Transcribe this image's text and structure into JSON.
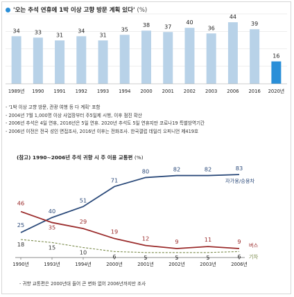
{
  "title": "'오는 추석 연휴에 1박 이상 고향 방문 계획 있다'",
  "title_unit": "(%)",
  "colors": {
    "bar": "#b8d2e8",
    "bar_highlight": "#2a8fd8",
    "car": "#2b4a7a",
    "bus": "#9a2a2a",
    "train": "#7a8a4a",
    "grid": "#dddddd"
  },
  "notes": [
    "- '1박 이상 고향 방문, 관광 여행 등 다 계획' 포함",
    "- 2004년 7월 1,000명 이상 사업장부터 주5일제 시행, 이후 점진 확산",
    "- 2006년 추석은 4일 연휴, 2016년은 5일 연휴. 2020년 추석도 5일 연휴지만 코로나19 특별방역기간",
    "- 2006년 이전은 전국 성인 면접조사, 2016년 이후는 전화조사. 한국갤럽 데일리 오피니언 제419호"
  ],
  "subtitle": "(참고) 1990~2006년 추석 귀향 시 주 이용 교통편",
  "subtitle_unit": "(%)",
  "footnote": "- 귀향 교통편은 2000년대 들어 큰 변화 없어 2006년까지만 조사",
  "chart_data": [
    {
      "type": "bar",
      "categories": [
        "1989년",
        "1990",
        "1991",
        "1992",
        "1993",
        "1994",
        "2000",
        "2001",
        "2002",
        "2003",
        "2006",
        "2016",
        "2020년"
      ],
      "values": [
        34,
        33,
        31,
        34,
        31,
        35,
        38,
        37,
        40,
        36,
        44,
        39,
        16
      ],
      "highlight_index": 12,
      "ylim": [
        0,
        50
      ],
      "grid": true
    },
    {
      "type": "line",
      "categories": [
        "1990년",
        "1993년",
        "1994년",
        "2000년",
        "2001년",
        "2002년",
        "2003년",
        "2006년"
      ],
      "series": [
        {
          "name": "자가용/승용차",
          "values": [
            25,
            40,
            51,
            71,
            80,
            82,
            82,
            83
          ],
          "color": "car",
          "dash": false
        },
        {
          "name": "버스",
          "values": [
            46,
            35,
            29,
            19,
            12,
            9,
            11,
            9
          ],
          "color": "bus",
          "dash": false
        },
        {
          "name": "기차",
          "values": [
            18,
            15,
            10,
            6,
            5,
            5,
            5,
            6
          ],
          "color": "train",
          "dash": true
        }
      ],
      "ylim": [
        0,
        90
      ]
    }
  ]
}
